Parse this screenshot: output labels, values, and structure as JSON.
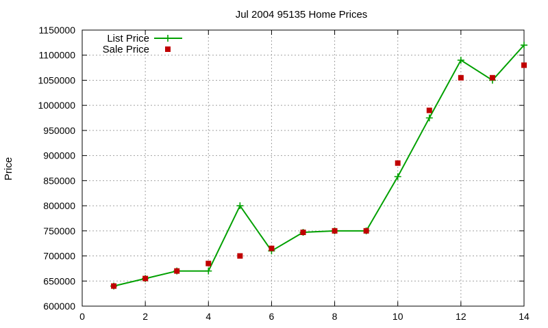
{
  "chart_data": {
    "type": "line",
    "title": "Jul 2004 95135 Home Prices",
    "xlabel": "",
    "ylabel": "Price",
    "xlim": [
      0,
      14
    ],
    "ylim": [
      600000,
      1150000
    ],
    "x_ticks": [
      0,
      2,
      4,
      6,
      8,
      10,
      12,
      14
    ],
    "y_ticks": [
      600000,
      650000,
      700000,
      750000,
      800000,
      850000,
      900000,
      950000,
      1000000,
      1050000,
      1100000,
      1150000
    ],
    "grid": true,
    "legend_position": "top-left",
    "series": [
      {
        "name": "List Price",
        "style": "lines+points",
        "marker": "plus",
        "color": "#00a000",
        "x": [
          1,
          2,
          3,
          4,
          5,
          6,
          7,
          8,
          9,
          10,
          11,
          12,
          13,
          14
        ],
        "y": [
          640000,
          655000,
          670000,
          670000,
          800000,
          710000,
          747000,
          750000,
          750000,
          858000,
          975000,
          1090000,
          1050000,
          1120000
        ]
      },
      {
        "name": "Sale Price",
        "style": "points",
        "marker": "square",
        "color": "#c00000",
        "x": [
          1,
          2,
          3,
          4,
          5,
          6,
          7,
          8,
          9,
          10,
          11,
          12,
          13,
          14
        ],
        "y": [
          640000,
          655000,
          670000,
          685000,
          700000,
          715000,
          747000,
          750000,
          750000,
          885000,
          990000,
          1055000,
          1055000,
          1080000
        ]
      }
    ]
  }
}
